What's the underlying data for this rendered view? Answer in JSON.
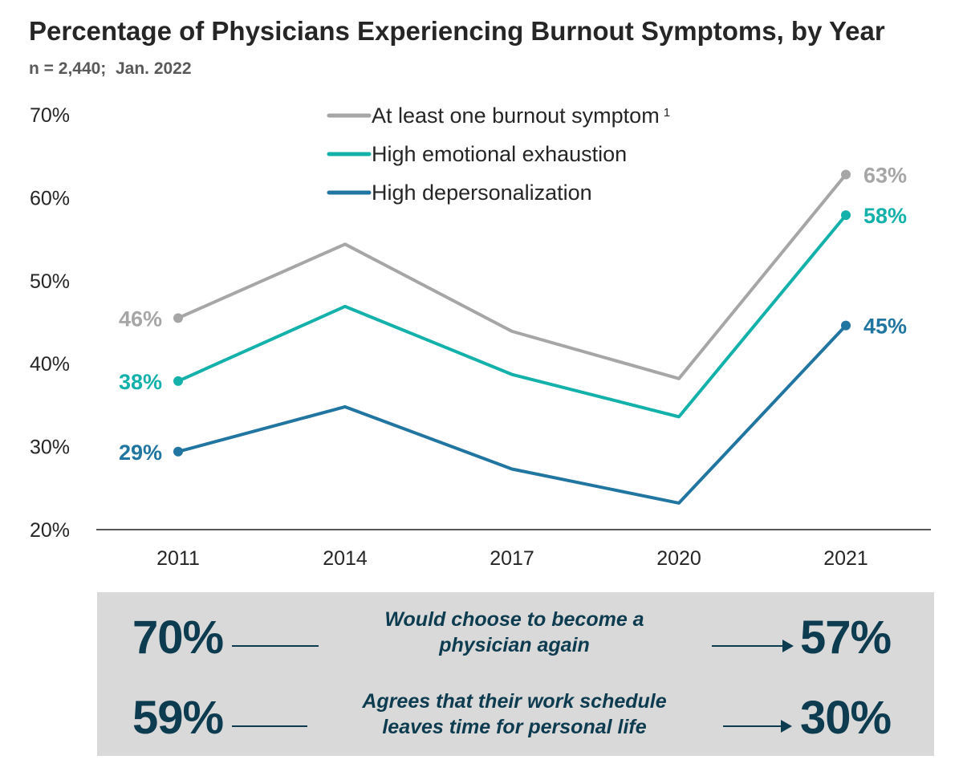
{
  "title": "Percentage of Physicians Experiencing Burnout Symptoms, by Year",
  "subtitle": "n = 2,440;  Jan. 2022",
  "chart_data": {
    "type": "line",
    "title": "Percentage of Physicians Experiencing Burnout Symptoms, by Year",
    "categories": [
      "2011",
      "2014",
      "2017",
      "2020",
      "2021"
    ],
    "ylim": [
      20,
      70
    ],
    "yticks": [
      "20%",
      "30%",
      "40%",
      "50%",
      "60%",
      "70%"
    ],
    "ytick_values": [
      20,
      30,
      40,
      50,
      60,
      70
    ],
    "xlabel": "",
    "ylabel": "",
    "grid": false,
    "legend_position": "top-center",
    "series": [
      {
        "name": "At least one burnout symptom",
        "superscript": "1",
        "color": "#a6a6a6",
        "values": [
          45.5,
          54.4,
          43.9,
          38.2,
          62.8
        ],
        "start_label": "46%",
        "end_label": "63%"
      },
      {
        "name": "High emotional exhaustion",
        "superscript": "",
        "color": "#13b1aa",
        "values": [
          37.9,
          46.9,
          38.7,
          33.6,
          57.9
        ],
        "start_label": "38%",
        "end_label": "58%"
      },
      {
        "name": "High depersonalization",
        "superscript": "",
        "color": "#2175a1",
        "values": [
          29.4,
          34.8,
          27.3,
          23.2,
          44.6
        ],
        "start_label": "29%",
        "end_label": "45%"
      }
    ]
  },
  "panel": {
    "rows": [
      {
        "before": "70%",
        "line1": "Would choose to become a",
        "line2": "physician again",
        "after": "57%"
      },
      {
        "before": "59%",
        "line1": "Agrees that their work schedule",
        "line2": "leaves time for personal life",
        "after": "30%"
      }
    ]
  }
}
